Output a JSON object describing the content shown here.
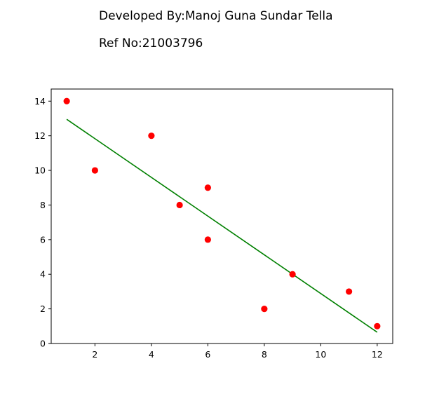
{
  "header": {
    "developer_line": "Developed By:Manoj Guna Sundar Tella",
    "ref_line": "Ref No:21003796"
  },
  "chart_data": {
    "type": "scatter",
    "title": "",
    "xlabel": "",
    "ylabel": "",
    "xlim": [
      0.45,
      12.55
    ],
    "ylim": [
      0,
      14.7
    ],
    "xticks": [
      2,
      4,
      6,
      8,
      10,
      12
    ],
    "yticks": [
      0,
      2,
      4,
      6,
      8,
      10,
      12,
      14
    ],
    "grid": false,
    "series": [
      {
        "type": "scatter",
        "color": "#ff0000",
        "points": [
          {
            "x": 1,
            "y": 14
          },
          {
            "x": 2,
            "y": 10
          },
          {
            "x": 4,
            "y": 12
          },
          {
            "x": 5,
            "y": 8
          },
          {
            "x": 6,
            "y": 9
          },
          {
            "x": 6,
            "y": 6
          },
          {
            "x": 8,
            "y": 2
          },
          {
            "x": 9,
            "y": 4
          },
          {
            "x": 11,
            "y": 3
          },
          {
            "x": 12,
            "y": 1
          }
        ]
      },
      {
        "type": "line",
        "color": "#008000",
        "points": [
          {
            "x": 1,
            "y": 12.95
          },
          {
            "x": 12,
            "y": 0.65
          }
        ]
      }
    ]
  }
}
